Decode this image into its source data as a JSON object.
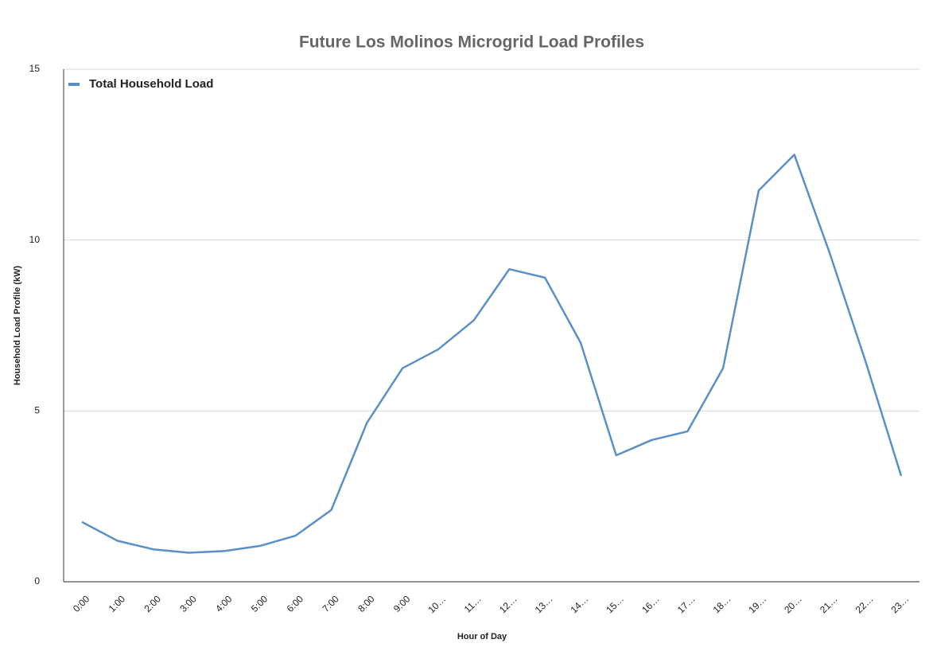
{
  "chart_data": {
    "type": "line",
    "title": "Future Los Molinos Microgrid Load Profiles",
    "x_label": "Hour of Day",
    "y_label": "Household Load Profile (kW)",
    "categories": [
      "0:00",
      "1:00",
      "2:00",
      "3:00",
      "4:00",
      "5:00",
      "6:00",
      "7:00",
      "8:00",
      "9:00",
      "10…",
      "11…",
      "12…",
      "13…",
      "14…",
      "15…",
      "16…",
      "17…",
      "18…",
      "19…",
      "20…",
      "21…",
      "22…",
      "23…"
    ],
    "series": [
      {
        "name": "Total Household Load",
        "color": "#5b8fc7",
        "values": [
          1.75,
          1.2,
          0.95,
          0.85,
          0.9,
          1.05,
          1.35,
          2.1,
          4.65,
          6.25,
          6.8,
          7.65,
          9.15,
          8.9,
          7.0,
          3.7,
          4.15,
          4.4,
          6.25,
          11.45,
          12.5,
          9.6,
          6.45,
          3.1
        ]
      }
    ],
    "ylim": [
      0,
      15
    ],
    "yticks": [
      0,
      5,
      10,
      15
    ],
    "grid": true,
    "legend": "top-left"
  }
}
